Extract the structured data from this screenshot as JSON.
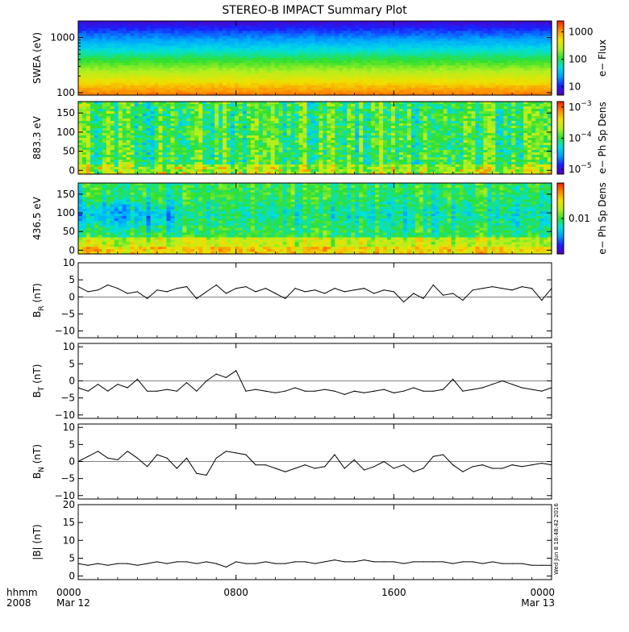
{
  "title": "STEREO-B IMPACT Summary Plot",
  "timestamp": "Wed Jun 8 18:48:42 2016",
  "x_axis": {
    "row1_label": "hhmm",
    "row2_label": "2008",
    "ticks": [
      {
        "hours": 0,
        "label": "0000",
        "date": "Mar 12"
      },
      {
        "hours": 8,
        "label": "0800",
        "date": ""
      },
      {
        "hours": 16,
        "label": "1600",
        "date": ""
      },
      {
        "hours": 24,
        "label": "0000",
        "date": "Mar 13"
      }
    ]
  },
  "colors": {
    "colormap": [
      "#5a00b4",
      "#1a20ff",
      "#00a0ff",
      "#00e0e0",
      "#30e030",
      "#b0f020",
      "#f0e000",
      "#ff8a00",
      "#f02000"
    ],
    "line": "#000000",
    "background": "#ffffff"
  },
  "chart_data": [
    {
      "type": "heatmap",
      "id": "swea",
      "ylabel": "SWEA (eV)",
      "yscale": "log",
      "ylim": [
        90,
        2000
      ],
      "yticks": [
        {
          "value": 100,
          "label": "100"
        },
        {
          "value": 1000,
          "label": "1000"
        }
      ],
      "colorbar": {
        "label": "e− Flux",
        "scale": "log",
        "range": [
          5,
          2500
        ],
        "ticks": [
          {
            "value": 10,
            "label": "10"
          },
          {
            "value": 100,
            "label": "100"
          },
          {
            "value": 1000,
            "label": "1000"
          }
        ]
      },
      "description_profile": "flux decreases with energy; ~2000 at 100 eV, ~5 at 2000 eV"
    },
    {
      "type": "heatmap",
      "id": "pad883",
      "ylabel": "883.3 eV",
      "yscale": "linear",
      "ylim": [
        -10,
        180
      ],
      "yticks": [
        {
          "value": 0,
          "label": "0"
        },
        {
          "value": 50,
          "label": "50"
        },
        {
          "value": 100,
          "label": "100"
        },
        {
          "value": 150,
          "label": "150"
        }
      ],
      "colorbar": {
        "label": "e− Ph Sp Dens",
        "scale": "log",
        "range": [
          7e-06,
          0.0015
        ],
        "ticks": [
          {
            "value": 1e-05,
            "label": "10",
            "exp": "−5"
          },
          {
            "value": 0.0001,
            "label": "10",
            "exp": "−4"
          },
          {
            "value": 0.001,
            "label": "10",
            "exp": "−3"
          }
        ]
      }
    },
    {
      "type": "heatmap",
      "id": "pad436",
      "ylabel": "436.5 eV",
      "yscale": "linear",
      "ylim": [
        -10,
        180
      ],
      "yticks": [
        {
          "value": 0,
          "label": "0"
        },
        {
          "value": 50,
          "label": "50"
        },
        {
          "value": 100,
          "label": "100"
        },
        {
          "value": 150,
          "label": "150"
        }
      ],
      "colorbar": {
        "label": "e− Ph Sp Dens",
        "scale": "log",
        "range": [
          0.002,
          0.05
        ],
        "ticks": [
          {
            "value": 0.01,
            "label": "0.01"
          }
        ]
      }
    },
    {
      "type": "line",
      "id": "br",
      "ylabel": "B",
      "ylabel_sub": "R",
      "ylabel_unit": " (nT)",
      "ylim": [
        -12,
        10
      ],
      "yticks": [
        {
          "value": -10,
          "label": "−10"
        },
        {
          "value": -5,
          "label": "−5"
        },
        {
          "value": 0,
          "label": "0"
        },
        {
          "value": 5,
          "label": "5"
        },
        {
          "value": 10,
          "label": "10"
        }
      ],
      "x": [
        0,
        0.5,
        1,
        1.5,
        2,
        2.5,
        3,
        3.5,
        4,
        4.5,
        5,
        5.5,
        6,
        6.5,
        7,
        7.5,
        8,
        8.5,
        9,
        9.5,
        10,
        10.5,
        11,
        11.5,
        12,
        12.5,
        13,
        13.5,
        14,
        14.5,
        15,
        15.5,
        16,
        16.5,
        17,
        17.5,
        18,
        18.5,
        19,
        19.5,
        20,
        20.5,
        21,
        21.5,
        22,
        22.5,
        23,
        23.5,
        24
      ],
      "y": [
        3,
        1.5,
        2,
        3.5,
        2.5,
        1,
        1.5,
        -0.5,
        2,
        1.5,
        2.5,
        3,
        -0.5,
        1.5,
        3.5,
        1,
        2.5,
        3,
        1.5,
        2.5,
        1,
        -0.5,
        2.5,
        1.5,
        2,
        1,
        2.5,
        1.5,
        2,
        2.5,
        1,
        2,
        1.5,
        -1.5,
        1,
        -0.5,
        3.5,
        0.5,
        1,
        -1,
        2,
        2.5,
        3,
        2.5,
        2,
        3,
        2.5,
        -1,
        2.5
      ]
    },
    {
      "type": "line",
      "id": "bt",
      "ylabel": "B",
      "ylabel_sub": "T",
      "ylabel_unit": " (nT)",
      "ylim": [
        -11,
        11
      ],
      "yticks": [
        {
          "value": -10,
          "label": "−10"
        },
        {
          "value": -5,
          "label": "−5"
        },
        {
          "value": 0,
          "label": "0"
        },
        {
          "value": 5,
          "label": "5"
        },
        {
          "value": 10,
          "label": "10"
        }
      ],
      "x": [
        0,
        0.5,
        1,
        1.5,
        2,
        2.5,
        3,
        3.5,
        4,
        4.5,
        5,
        5.5,
        6,
        6.5,
        7,
        7.5,
        8,
        8.5,
        9,
        9.5,
        10,
        10.5,
        11,
        11.5,
        12,
        12.5,
        13,
        13.5,
        14,
        14.5,
        15,
        15.5,
        16,
        16.5,
        17,
        17.5,
        18,
        18.5,
        19,
        19.5,
        20,
        20.5,
        21,
        21.5,
        22,
        22.5,
        23,
        23.5,
        24
      ],
      "y": [
        -2,
        -3,
        -1,
        -3,
        -1,
        -2,
        0.5,
        -3,
        -3,
        -2.5,
        -3,
        -0.5,
        -3,
        0,
        2,
        1,
        3,
        -3,
        -2.5,
        -3,
        -3.5,
        -3,
        -2,
        -3,
        -3,
        -2.5,
        -3,
        -4,
        -3,
        -3.5,
        -3,
        -2.5,
        -3.5,
        -3,
        -2,
        -3,
        -3,
        -2.5,
        0.5,
        -3,
        -2.5,
        -2,
        -1,
        0,
        -1,
        -2,
        -2.5,
        -3,
        -2
      ]
    },
    {
      "type": "line",
      "id": "bn",
      "ylabel": "B",
      "ylabel_sub": "N",
      "ylabel_unit": " (nT)",
      "ylim": [
        -11,
        11
      ],
      "yticks": [
        {
          "value": -10,
          "label": "−10"
        },
        {
          "value": -5,
          "label": "−5"
        },
        {
          "value": 0,
          "label": "0"
        },
        {
          "value": 5,
          "label": "5"
        },
        {
          "value": 10,
          "label": "10"
        }
      ],
      "x": [
        0,
        0.5,
        1,
        1.5,
        2,
        2.5,
        3,
        3.5,
        4,
        4.5,
        5,
        5.5,
        6,
        6.5,
        7,
        7.5,
        8,
        8.5,
        9,
        9.5,
        10,
        10.5,
        11,
        11.5,
        12,
        12.5,
        13,
        13.5,
        14,
        14.5,
        15,
        15.5,
        16,
        16.5,
        17,
        17.5,
        18,
        18.5,
        19,
        19.5,
        20,
        20.5,
        21,
        21.5,
        22,
        22.5,
        23,
        23.5,
        24
      ],
      "y": [
        0,
        1.5,
        3,
        1,
        0.5,
        3,
        1,
        -1.5,
        2,
        1,
        -2,
        1,
        -3.5,
        -4,
        1,
        3,
        2.5,
        2,
        -1,
        -1,
        -2,
        -3,
        -2,
        -1,
        -2,
        -1.5,
        2,
        -2,
        0.5,
        -2.5,
        -1.5,
        0,
        -2,
        -1,
        -3,
        -2,
        1.5,
        2,
        -1,
        -3,
        -1.5,
        -1,
        -2,
        -2,
        -1,
        -1.5,
        -1,
        -0.5,
        -1
      ]
    },
    {
      "type": "line",
      "id": "bmag",
      "ylabel": "|B| (nT)",
      "ylim": [
        -1,
        20
      ],
      "yticks": [
        {
          "value": 0,
          "label": "0"
        },
        {
          "value": 5,
          "label": "5"
        },
        {
          "value": 10,
          "label": "10"
        },
        {
          "value": 15,
          "label": "15"
        },
        {
          "value": 20,
          "label": "20"
        }
      ],
      "x": [
        0,
        0.5,
        1,
        1.5,
        2,
        2.5,
        3,
        3.5,
        4,
        4.5,
        5,
        5.5,
        6,
        6.5,
        7,
        7.5,
        8,
        8.5,
        9,
        9.5,
        10,
        10.5,
        11,
        11.5,
        12,
        12.5,
        13,
        13.5,
        14,
        14.5,
        15,
        15.5,
        16,
        16.5,
        17,
        17.5,
        18,
        18.5,
        19,
        19.5,
        20,
        20.5,
        21,
        21.5,
        22,
        22.5,
        23,
        23.5,
        24
      ],
      "y": [
        3.5,
        3,
        3.5,
        3,
        3.5,
        3.5,
        3,
        3.5,
        4,
        3.5,
        4,
        4,
        3.5,
        4,
        3.5,
        2.5,
        4,
        3.5,
        3.5,
        4,
        3.5,
        3.5,
        4,
        4,
        3.5,
        4,
        4.5,
        4,
        4,
        4.5,
        4,
        4,
        4,
        3.5,
        4,
        4,
        4,
        4,
        3.5,
        4,
        4,
        3.5,
        4,
        3.5,
        3.5,
        3.5,
        3,
        3,
        3
      ]
    }
  ]
}
